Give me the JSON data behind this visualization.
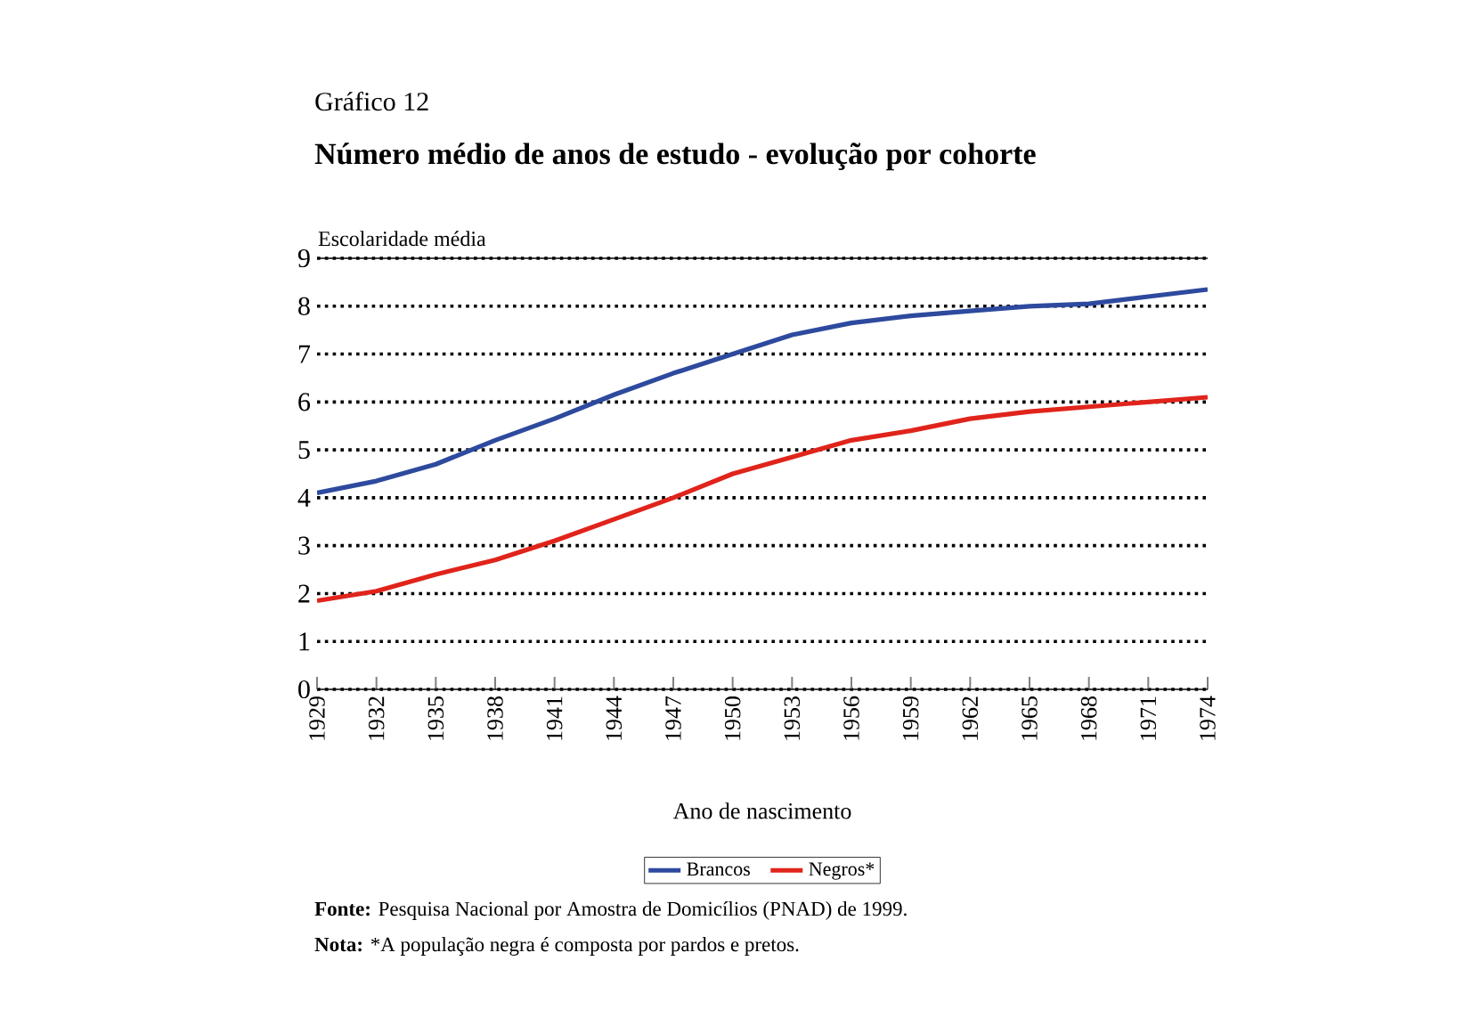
{
  "chart_data": {
    "type": "line",
    "title": "Gráfico 12",
    "subtitle": "Número médio de anos de estudo - evolução por cohorte",
    "ylabel": "Escolaridade média",
    "xlabel": "Ano de nascimento",
    "x": [
      1929,
      1932,
      1935,
      1938,
      1941,
      1944,
      1947,
      1950,
      1953,
      1956,
      1959,
      1962,
      1965,
      1968,
      1971,
      1974
    ],
    "series": [
      {
        "name": "Brancos",
        "color": "#2e4a9e",
        "values": [
          4.1,
          4.35,
          4.7,
          5.2,
          5.65,
          6.15,
          6.6,
          7.0,
          7.4,
          7.65,
          7.8,
          7.9,
          8.0,
          8.05,
          8.2,
          8.35
        ]
      },
      {
        "name": "Negros*",
        "color": "#e0241b",
        "values": [
          1.85,
          2.05,
          2.4,
          2.7,
          3.1,
          3.55,
          4.0,
          4.5,
          4.85,
          5.2,
          5.4,
          5.65,
          5.8,
          5.9,
          6.0,
          6.1
        ]
      }
    ],
    "xlim": [
      1929,
      1974
    ],
    "xticks": [
      1929,
      1932,
      1935,
      1938,
      1941,
      1944,
      1947,
      1950,
      1953,
      1956,
      1959,
      1962,
      1965,
      1968,
      1971,
      1974
    ],
    "ylim": [
      0,
      9
    ],
    "yticks": [
      0,
      1,
      2,
      3,
      4,
      5,
      6,
      7,
      8,
      9
    ],
    "grid": "y",
    "legend": "bottom",
    "annotations": [
      "**Fonte:** Pesquisa Nacional por Amostra de Domicílios (PNAD) de 1999.",
      "**Nota:** *A população negra é composta por pardos e pretos."
    ]
  }
}
